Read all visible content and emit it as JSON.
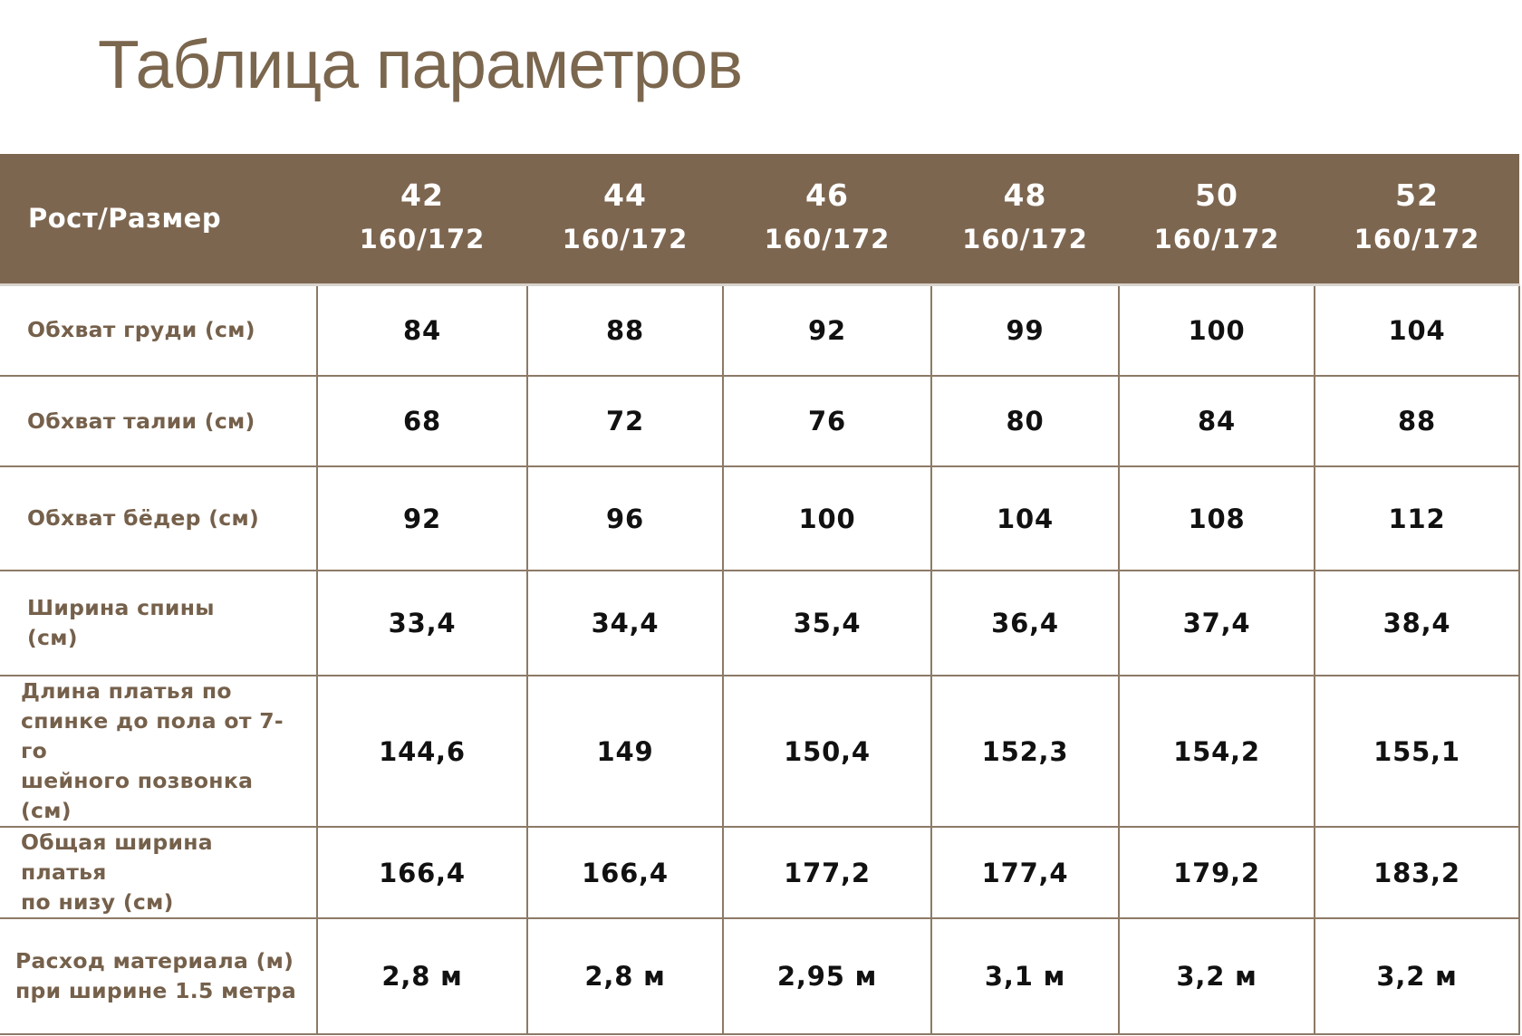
{
  "title": "Таблица параметров",
  "table": {
    "corner_label": "Рост/Размер",
    "sizes": [
      {
        "size": "42",
        "height": "160/172"
      },
      {
        "size": "44",
        "height": "160/172"
      },
      {
        "size": "46",
        "height": "160/172"
      },
      {
        "size": "48",
        "height": "160/172"
      },
      {
        "size": "50",
        "height": "160/172"
      },
      {
        "size": "52",
        "height": "160/172"
      }
    ],
    "rows": [
      {
        "label": "Обхват груди (см)",
        "values": [
          "84",
          "88",
          "92",
          "99",
          "100",
          "104"
        ]
      },
      {
        "label": "Обхват талии (см)",
        "values": [
          "68",
          "72",
          "76",
          "80",
          "84",
          "88"
        ]
      },
      {
        "label": "Обхват бёдер (см)",
        "values": [
          "92",
          "96",
          "100",
          "104",
          "108",
          "112"
        ]
      },
      {
        "label": "Ширина спины\n(см)",
        "values": [
          "33,4",
          "34,4",
          "35,4",
          "36,4",
          "37,4",
          "38,4"
        ]
      },
      {
        "label": "Длина платья по\nспинке до пола от 7-го\nшейного позвонка (см)",
        "values": [
          "144,6",
          "149",
          "150,4",
          "152,3",
          "154,2",
          "155,1"
        ]
      },
      {
        "label": "Общая ширина платья\nпо низу (см)",
        "values": [
          "166,4",
          "166,4",
          "177,2",
          "177,4",
          "179,2",
          "183,2"
        ]
      },
      {
        "label": "Расход материала (м)\nпри ширине 1.5 метра",
        "values": [
          "2,8 м",
          "2,8 м",
          "2,95 м",
          "3,1 м",
          "3,2 м",
          "3,2 м"
        ]
      }
    ]
  },
  "colors": {
    "header_bg": "#7d6650",
    "title_text": "#7b664e",
    "label_text": "#75604b",
    "grid_lines": "#8c7a67"
  }
}
